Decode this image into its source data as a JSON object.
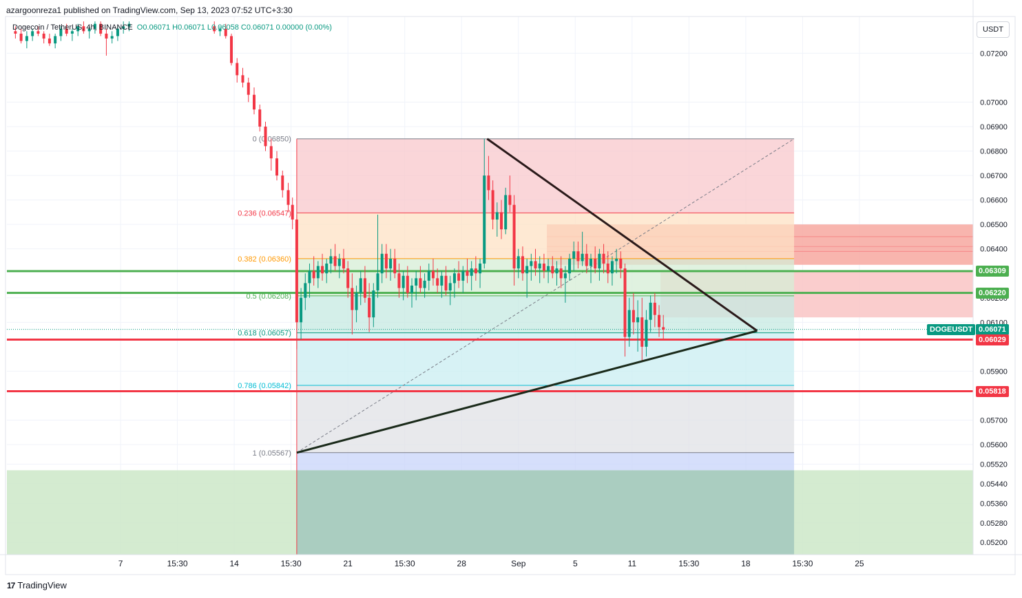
{
  "header": {
    "published_text": "azargoonreza1 published on TradingView.com, Sep 13, 2023 07:52 UTC+3:30"
  },
  "legend": {
    "symbol_text": "Dogecoin / TetherUS, 4h, BINANCE",
    "ohlc_text": "O0.06071  H0.06071  L0.06058  C0.06071  0.00000 (0.00%)"
  },
  "currency_button": "USDT",
  "footer": {
    "logo": "17",
    "brand": "TradingView"
  },
  "colors": {
    "up": "#089981",
    "down": "#f23645",
    "green_line": "#4caf50",
    "red_line": "#f23645",
    "fib_0": "#f23645",
    "fib_0236": "#f23645",
    "fib_0382": "#ff9800",
    "fib_05": "#4caf50",
    "fib_0618": "#089981",
    "fib_0786": "#00bcd4",
    "fib_1": "#787b86"
  },
  "chart_data": {
    "type": "candlestick",
    "symbol": "DOGEUSDT",
    "price_axis": {
      "ylim": [
        0.0515,
        0.0735
      ],
      "ticks": [
        "0.07200",
        "0.07000",
        "0.06900",
        "0.06800",
        "0.06700",
        "0.06600",
        "0.06500",
        "0.06400",
        "0.06200",
        "0.06100",
        "0.05900",
        "0.05700",
        "0.05600",
        "0.05520",
        "0.05440",
        "0.05360",
        "0.05280",
        "0.05200"
      ],
      "tick_values": [
        0.072,
        0.07,
        0.069,
        0.068,
        0.067,
        0.066,
        0.065,
        0.064,
        0.062,
        0.061,
        0.059,
        0.057,
        0.056,
        0.0552,
        0.0544,
        0.0536,
        0.0528,
        0.052
      ]
    },
    "time_axis": {
      "xlim_days": [
        0,
        34
      ],
      "ticks": [
        {
          "label": "7",
          "t": 4.0
        },
        {
          "label": "15:30",
          "t": 6.0
        },
        {
          "label": "14",
          "t": 8.0
        },
        {
          "label": "15:30",
          "t": 10.0
        },
        {
          "label": "21",
          "t": 12.0
        },
        {
          "label": "15:30",
          "t": 14.0
        },
        {
          "label": "28",
          "t": 16.0
        },
        {
          "label": "Sep",
          "t": 18.0
        },
        {
          "label": "5",
          "t": 20.0
        },
        {
          "label": "11",
          "t": 22.0
        },
        {
          "label": "15:30",
          "t": 24.0
        },
        {
          "label": "18",
          "t": 26.0
        },
        {
          "label": "15:30",
          "t": 28.0
        },
        {
          "label": "25",
          "t": 30.0
        }
      ]
    },
    "price_labels": [
      {
        "text": "0.06309",
        "value": 0.06309,
        "color": "#4caf50"
      },
      {
        "text": "0.06220",
        "value": 0.0622,
        "color": "#4caf50"
      },
      {
        "text": "0.06071",
        "value": 0.06071,
        "color": "#089981",
        "tag": "DOGEUSDT"
      },
      {
        "text": "0.06029",
        "value": 0.06029,
        "color": "#f23645"
      },
      {
        "text": "0.05818",
        "value": 0.05818,
        "color": "#f23645"
      }
    ],
    "horizontal_lines": [
      {
        "value": 0.06309,
        "color": "#4caf50"
      },
      {
        "value": 0.0622,
        "color": "#4caf50"
      },
      {
        "value": 0.06029,
        "color": "#f23645"
      },
      {
        "value": 0.05818,
        "color": "#f23645"
      }
    ],
    "fib": {
      "start": {
        "t": 10.2,
        "value": 0.05567
      },
      "end": {
        "t": 16.9,
        "value": 0.0685
      },
      "t_right": 27.7,
      "levels": [
        {
          "text": "0 (0.06850)",
          "value": 0.0685,
          "color": "#787b86",
          "fill": "#f8c8cc"
        },
        {
          "text": "0.236 (0.06547)",
          "value": 0.06547,
          "color": "#f23645",
          "fill": "#fde2c4"
        },
        {
          "text": "0.382 (0.06360)",
          "value": 0.0636,
          "color": "#ff9800",
          "fill": "#d6edd6"
        },
        {
          "text": "0.5 (0.06208)",
          "value": 0.06208,
          "color": "#4caf50",
          "fill": "#c6e9e2"
        },
        {
          "text": "0.618 (0.06057)",
          "value": 0.06057,
          "color": "#089981",
          "fill": "#c9eef2"
        },
        {
          "text": "0.786 (0.05842)",
          "value": 0.05842,
          "color": "#00bcd4",
          "fill": "#e0e1e5"
        },
        {
          "text": "1 (0.05567)",
          "value": 0.05567,
          "color": "#787b86",
          "fill": "#c8d4fa"
        }
      ]
    },
    "zones": [
      {
        "t0": 0,
        "t1": 34,
        "v0": 0.0515,
        "v1": 0.05495,
        "fill": "#cde8c8"
      },
      {
        "t0": 19.0,
        "t1": 34,
        "v0": 0.06335,
        "v1": 0.065,
        "fill": "#f7a8a0"
      },
      {
        "t0": 23.0,
        "t1": 34,
        "v0": 0.0612,
        "v1": 0.06309,
        "fill": "#f9c4c4"
      }
    ],
    "triangle": {
      "upper": [
        {
          "t": 16.9,
          "v": 0.0685
        },
        {
          "t": 26.4,
          "v": 0.06065
        }
      ],
      "lower": [
        {
          "t": 10.2,
          "v": 0.05567
        },
        {
          "t": 26.4,
          "v": 0.06065
        }
      ]
    },
    "candles": [
      [
        0.3,
        0.0729,
        0.0731,
        0.0726,
        0.0728
      ],
      [
        0.5,
        0.0728,
        0.073,
        0.0724,
        0.0725
      ],
      [
        0.7,
        0.0725,
        0.0729,
        0.0722,
        0.0727
      ],
      [
        0.9,
        0.0727,
        0.073,
        0.0725,
        0.0729
      ],
      [
        1.1,
        0.0729,
        0.0731,
        0.0727,
        0.0728
      ],
      [
        1.3,
        0.0728,
        0.0729,
        0.0724,
        0.0726
      ],
      [
        1.5,
        0.0726,
        0.0728,
        0.0723,
        0.0724
      ],
      [
        1.7,
        0.0724,
        0.0728,
        0.0722,
        0.0727
      ],
      [
        1.9,
        0.0727,
        0.0731,
        0.0725,
        0.073
      ],
      [
        2.1,
        0.073,
        0.0732,
        0.0727,
        0.0728
      ],
      [
        2.3,
        0.0728,
        0.073,
        0.0725,
        0.0729
      ],
      [
        2.5,
        0.0729,
        0.0732,
        0.0727,
        0.0731
      ],
      [
        2.7,
        0.0731,
        0.0733,
        0.0728,
        0.0729
      ],
      [
        2.9,
        0.0729,
        0.0731,
        0.0726,
        0.073
      ],
      [
        3.1,
        0.073,
        0.0733,
        0.0728,
        0.0732
      ],
      [
        3.3,
        0.0732,
        0.0733,
        0.0727,
        0.0728
      ],
      [
        3.5,
        0.0728,
        0.073,
        0.0719,
        0.0726
      ],
      [
        3.7,
        0.0726,
        0.0729,
        0.0724,
        0.0727
      ],
      [
        3.9,
        0.0727,
        0.0731,
        0.0725,
        0.073
      ],
      [
        4.1,
        0.073,
        0.0733,
        0.0728,
        0.0731
      ],
      [
        4.3,
        0.0731,
        0.0733,
        0.0729,
        0.0732
      ],
      [
        7.3,
        0.0731,
        0.0733,
        0.0728,
        0.0729
      ],
      [
        7.5,
        0.0729,
        0.0731,
        0.0727,
        0.073
      ],
      [
        7.7,
        0.073,
        0.0732,
        0.0726,
        0.0727
      ],
      [
        7.9,
        0.0727,
        0.0728,
        0.0715,
        0.0716
      ],
      [
        8.1,
        0.0716,
        0.0718,
        0.0708,
        0.0711
      ],
      [
        8.3,
        0.0711,
        0.0714,
        0.0706,
        0.0708
      ],
      [
        8.5,
        0.0708,
        0.071,
        0.07,
        0.0703
      ],
      [
        8.7,
        0.0703,
        0.0706,
        0.0695,
        0.0697
      ],
      [
        8.9,
        0.0697,
        0.0699,
        0.0688,
        0.069
      ],
      [
        9.1,
        0.069,
        0.0692,
        0.068,
        0.0682
      ],
      [
        9.3,
        0.0682,
        0.0685,
        0.0672,
        0.0677
      ],
      [
        9.5,
        0.0677,
        0.068,
        0.0668,
        0.067
      ],
      [
        9.7,
        0.067,
        0.0672,
        0.0661,
        0.0664
      ],
      [
        9.9,
        0.0664,
        0.0667,
        0.0655,
        0.0658
      ],
      [
        10.05,
        0.0658,
        0.0661,
        0.0648,
        0.0652
      ],
      [
        10.2,
        0.0652,
        0.0654,
        0.0599,
        0.061
      ],
      [
        10.35,
        0.061,
        0.0624,
        0.0603,
        0.062
      ],
      [
        10.5,
        0.062,
        0.063,
        0.0615,
        0.0626
      ],
      [
        10.65,
        0.0626,
        0.0634,
        0.062,
        0.0631
      ],
      [
        10.8,
        0.0631,
        0.0637,
        0.0625,
        0.0628
      ],
      [
        10.95,
        0.0628,
        0.0635,
        0.0624,
        0.0633
      ],
      [
        11.1,
        0.0633,
        0.0638,
        0.0627,
        0.063
      ],
      [
        11.25,
        0.063,
        0.0636,
        0.0626,
        0.0634
      ],
      [
        11.4,
        0.0634,
        0.064,
        0.063,
        0.0637
      ],
      [
        11.55,
        0.0637,
        0.0642,
        0.0631,
        0.0633
      ],
      [
        11.7,
        0.0633,
        0.0638,
        0.0628,
        0.0636
      ],
      [
        11.85,
        0.0636,
        0.064,
        0.063,
        0.0632
      ],
      [
        12.0,
        0.0632,
        0.0635,
        0.062,
        0.0624
      ],
      [
        12.15,
        0.0624,
        0.063,
        0.0605,
        0.0615
      ],
      [
        12.3,
        0.0615,
        0.0625,
        0.061,
        0.0622
      ],
      [
        12.45,
        0.0622,
        0.0631,
        0.0617,
        0.0628
      ],
      [
        12.6,
        0.0628,
        0.0633,
        0.0618,
        0.062
      ],
      [
        12.75,
        0.062,
        0.0626,
        0.0606,
        0.0612
      ],
      [
        12.9,
        0.0612,
        0.0626,
        0.0608,
        0.0623
      ],
      [
        13.05,
        0.0623,
        0.0654,
        0.062,
        0.063
      ],
      [
        13.2,
        0.063,
        0.0642,
        0.0626,
        0.0638
      ],
      [
        13.35,
        0.0638,
        0.0642,
        0.0628,
        0.0632
      ],
      [
        13.5,
        0.0632,
        0.064,
        0.0627,
        0.0636
      ],
      [
        13.65,
        0.0636,
        0.064,
        0.0628,
        0.063
      ],
      [
        13.8,
        0.063,
        0.0634,
        0.062,
        0.0624
      ],
      [
        13.95,
        0.0624,
        0.0631,
        0.0619,
        0.0629
      ],
      [
        14.1,
        0.0629,
        0.0633,
        0.062,
        0.0622
      ],
      [
        14.25,
        0.0622,
        0.0628,
        0.0616,
        0.0625
      ],
      [
        14.4,
        0.0625,
        0.0631,
        0.0619,
        0.0628
      ],
      [
        14.55,
        0.0628,
        0.0633,
        0.0622,
        0.0624
      ],
      [
        14.7,
        0.0624,
        0.063,
        0.062,
        0.0627
      ],
      [
        14.85,
        0.0627,
        0.0634,
        0.0623,
        0.0631
      ],
      [
        15.0,
        0.0631,
        0.0636,
        0.0625,
        0.0628
      ],
      [
        15.15,
        0.0628,
        0.0632,
        0.0622,
        0.0625
      ],
      [
        15.3,
        0.0625,
        0.0631,
        0.062,
        0.0629
      ],
      [
        15.45,
        0.0629,
        0.0633,
        0.0621,
        0.0623
      ],
      [
        15.6,
        0.0623,
        0.0629,
        0.0617,
        0.0626
      ],
      [
        15.75,
        0.0626,
        0.0632,
        0.062,
        0.063
      ],
      [
        15.9,
        0.063,
        0.0635,
        0.0624,
        0.0627
      ],
      [
        16.05,
        0.0627,
        0.0633,
        0.0622,
        0.0631
      ],
      [
        16.2,
        0.0631,
        0.0636,
        0.0626,
        0.0629
      ],
      [
        16.35,
        0.0629,
        0.0635,
        0.0623,
        0.0632
      ],
      [
        16.5,
        0.0632,
        0.0637,
        0.0627,
        0.063
      ],
      [
        16.65,
        0.063,
        0.0636,
        0.0624,
        0.0634
      ],
      [
        16.8,
        0.0634,
        0.0685,
        0.0632,
        0.067
      ],
      [
        16.95,
        0.067,
        0.0678,
        0.066,
        0.0664
      ],
      [
        17.1,
        0.0664,
        0.0668,
        0.0648,
        0.0652
      ],
      [
        17.25,
        0.0652,
        0.0659,
        0.0645,
        0.0655
      ],
      [
        17.4,
        0.0655,
        0.066,
        0.0644,
        0.0648
      ],
      [
        17.55,
        0.0648,
        0.0665,
        0.0646,
        0.0662
      ],
      [
        17.7,
        0.0662,
        0.067,
        0.0655,
        0.0658
      ],
      [
        17.85,
        0.0658,
        0.0662,
        0.0625,
        0.0632
      ],
      [
        18.0,
        0.0632,
        0.064,
        0.0628,
        0.0637
      ],
      [
        18.15,
        0.0637,
        0.0641,
        0.0627,
        0.063
      ],
      [
        18.3,
        0.063,
        0.0636,
        0.062,
        0.0633
      ],
      [
        18.45,
        0.0633,
        0.0638,
        0.0627,
        0.0635
      ],
      [
        18.6,
        0.0635,
        0.064,
        0.0629,
        0.0632
      ],
      [
        18.75,
        0.0632,
        0.0637,
        0.0626,
        0.0634
      ],
      [
        18.9,
        0.0634,
        0.0638,
        0.0628,
        0.0631
      ],
      [
        19.05,
        0.0631,
        0.0636,
        0.0626,
        0.0633
      ],
      [
        19.2,
        0.0633,
        0.0637,
        0.0628,
        0.063
      ],
      [
        19.35,
        0.063,
        0.0635,
        0.0625,
        0.0632
      ],
      [
        19.5,
        0.0632,
        0.0637,
        0.0624,
        0.0628
      ],
      [
        19.65,
        0.0628,
        0.0633,
        0.0618,
        0.063
      ],
      [
        19.8,
        0.063,
        0.0638,
        0.0627,
        0.0636
      ],
      [
        19.95,
        0.0636,
        0.0643,
        0.0631,
        0.0639
      ],
      [
        20.1,
        0.0639,
        0.0643,
        0.0632,
        0.0635
      ],
      [
        20.25,
        0.0635,
        0.0647,
        0.0633,
        0.0638
      ],
      [
        20.4,
        0.0638,
        0.0642,
        0.063,
        0.0633
      ],
      [
        20.55,
        0.0633,
        0.0638,
        0.0626,
        0.0636
      ],
      [
        20.7,
        0.0636,
        0.0641,
        0.063,
        0.0632
      ],
      [
        20.85,
        0.0632,
        0.064,
        0.0627,
        0.0638
      ],
      [
        21.0,
        0.0638,
        0.0642,
        0.063,
        0.0634
      ],
      [
        21.15,
        0.0634,
        0.0639,
        0.0626,
        0.063
      ],
      [
        21.3,
        0.063,
        0.0637,
        0.0625,
        0.0635
      ],
      [
        21.45,
        0.0635,
        0.064,
        0.063,
        0.0636
      ],
      [
        21.6,
        0.0636,
        0.0639,
        0.0628,
        0.0632
      ],
      [
        21.75,
        0.0632,
        0.0634,
        0.0596,
        0.0604
      ],
      [
        21.9,
        0.0604,
        0.062,
        0.06,
        0.0615
      ],
      [
        22.05,
        0.0615,
        0.0622,
        0.0605,
        0.061
      ],
      [
        22.2,
        0.061,
        0.0619,
        0.0598,
        0.0612
      ],
      [
        22.35,
        0.0612,
        0.062,
        0.0594,
        0.06
      ],
      [
        22.5,
        0.06,
        0.0615,
        0.0596,
        0.0611
      ],
      [
        22.65,
        0.0611,
        0.0621,
        0.0606,
        0.0618
      ],
      [
        22.8,
        0.0618,
        0.0622,
        0.0608,
        0.0613
      ],
      [
        22.95,
        0.0613,
        0.0617,
        0.0604,
        0.0608
      ],
      [
        23.1,
        0.0608,
        0.0613,
        0.0603,
        0.0607
      ]
    ]
  }
}
